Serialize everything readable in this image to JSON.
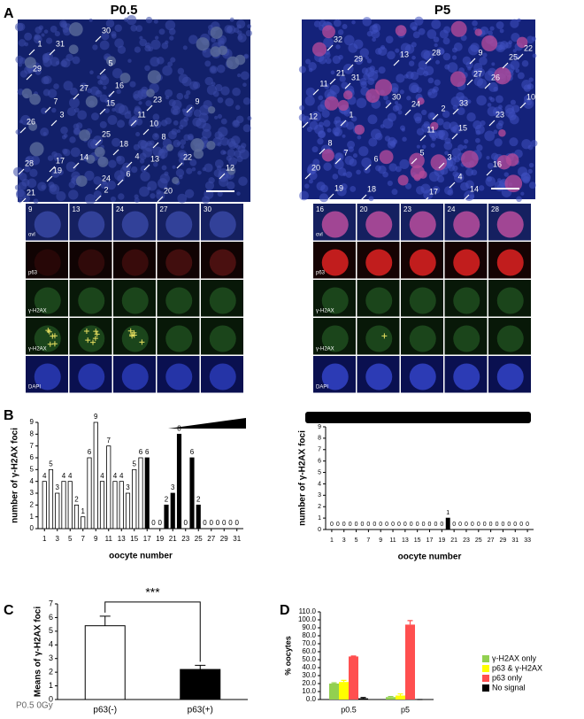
{
  "panel_a": {
    "label": "A",
    "titles": [
      "P0.5",
      "P5"
    ],
    "image_labels": [
      [
        "30",
        "1",
        "31",
        "29",
        "5",
        "27",
        "16",
        "7",
        "15",
        "23",
        "3",
        "11",
        "10",
        "26",
        "9",
        "8",
        "25",
        "18",
        "4",
        "14",
        "17",
        "28",
        "13",
        "22",
        "12",
        "19",
        "24",
        "6",
        "2",
        "20",
        "21"
      ],
      [
        "32",
        "13",
        "28",
        "9",
        "22",
        "25",
        "29",
        "21",
        "31",
        "11",
        "27",
        "26",
        "10",
        "30",
        "24",
        "2",
        "33",
        "12",
        "1",
        "11",
        "15",
        "23",
        "8",
        "7",
        "6",
        "5",
        "3",
        "16",
        "20",
        "4",
        "14",
        "18",
        "19",
        "17"
      ]
    ],
    "inset_columns": [
      [
        "9",
        "13",
        "24",
        "27",
        "30"
      ],
      [
        "16",
        "20",
        "23",
        "24",
        "28"
      ]
    ],
    "inset_rows": [
      "ovl",
      "p63",
      "γ-H2AX",
      "γ-H2AX",
      "DAPI"
    ]
  },
  "panel_labels": [
    "B",
    "C",
    "D"
  ],
  "chart_data": [
    {
      "type": "bar",
      "x": [
        1,
        2,
        3,
        4,
        5,
        6,
        7,
        8,
        9,
        10,
        11,
        12,
        13,
        14,
        15,
        16,
        17,
        18,
        19,
        20,
        21,
        22,
        23,
        24,
        25,
        26,
        27,
        28,
        29,
        30,
        31
      ],
      "values": [
        4,
        5,
        3,
        4,
        4,
        2,
        1,
        6,
        9,
        4,
        7,
        4,
        4,
        3,
        5,
        6,
        6,
        0,
        0,
        2,
        3,
        8,
        0,
        6,
        2,
        0,
        0,
        0,
        0,
        0,
        0
      ],
      "colors": [
        "#ffffff",
        "#ffffff",
        "#ffffff",
        "#ffffff",
        "#ffffff",
        "#ffffff",
        "#ffffff",
        "#ffffff",
        "#ffffff",
        "#ffffff",
        "#ffffff",
        "#ffffff",
        "#ffffff",
        "#ffffff",
        "#ffffff",
        "#ffffff",
        "#000000",
        "#000000",
        "#000000",
        "#000000",
        "#000000",
        "#000000",
        "#000000",
        "#000000",
        "#000000",
        "#000000",
        "#000000",
        "#000000",
        "#000000",
        "#000000",
        "#000000"
      ],
      "xlim": [
        0,
        32
      ],
      "xticks": [
        1,
        3,
        5,
        7,
        9,
        11,
        13,
        15,
        17,
        19,
        21,
        23,
        25,
        27,
        29,
        31
      ],
      "ylim": [
        0,
        9
      ],
      "yticks": [
        0,
        1,
        2,
        3,
        4,
        5,
        6,
        7,
        8,
        9
      ],
      "ylabel": "number of γ-H2AX foci",
      "xlabel": "oocyte number"
    },
    {
      "type": "bar",
      "x": [
        1,
        2,
        3,
        4,
        5,
        6,
        7,
        8,
        9,
        10,
        11,
        12,
        13,
        14,
        15,
        16,
        17,
        18,
        19,
        20,
        21,
        22,
        23,
        24,
        25,
        26,
        27,
        28,
        29,
        30,
        31,
        32,
        33
      ],
      "values": [
        0,
        0,
        0,
        0,
        0,
        0,
        0,
        0,
        0,
        0,
        0,
        0,
        0,
        0,
        0,
        0,
        0,
        0,
        0,
        1,
        0,
        0,
        0,
        0,
        0,
        0,
        0,
        0,
        0,
        0,
        0,
        0,
        0
      ],
      "color": "#000000",
      "xlim": [
        0,
        34
      ],
      "xticks": [
        1,
        3,
        5,
        7,
        9,
        11,
        13,
        15,
        17,
        19,
        21,
        23,
        25,
        27,
        29,
        31,
        33
      ],
      "ylim": [
        0,
        9
      ],
      "yticks": [
        0,
        1,
        2,
        3,
        4,
        5,
        6,
        7,
        8,
        9
      ],
      "ylabel": "number of γ-H2AX foci",
      "xlabel": "oocyte number"
    },
    {
      "type": "bar",
      "categories": [
        "p63(-)",
        "p63(+)"
      ],
      "values": [
        5.4,
        2.2
      ],
      "errors": [
        0.7,
        0.3
      ],
      "colors": [
        "#ffffff",
        "#000000"
      ],
      "ylim": [
        0,
        7
      ],
      "yticks": [
        0,
        1,
        2,
        3,
        4,
        5,
        6,
        7
      ],
      "ylabel": "Means of γ-H2AX foci",
      "annotation": "***",
      "note": "P0.5 0Gy"
    },
    {
      "type": "grouped_bar",
      "categories": [
        "p0.5",
        "p5"
      ],
      "series": [
        {
          "name": "γ-H2AX only",
          "color": "#92d050",
          "values": [
            20,
            3
          ],
          "errors": [
            1,
            0.8
          ]
        },
        {
          "name": "p63 & γ-H2AX",
          "color": "#ffff00",
          "values": [
            22,
            5
          ],
          "errors": [
            2,
            2
          ]
        },
        {
          "name": "p63 only",
          "color": "#ff4f4f",
          "values": [
            54,
            94
          ],
          "errors": [
            0.6,
            5
          ]
        },
        {
          "name": "No signal",
          "color": "#000000",
          "values": [
            1.5,
            0
          ],
          "errors": [
            1,
            0
          ]
        }
      ],
      "ylim": [
        0,
        110
      ],
      "yticks": [
        {
          "value": 0,
          "label": "0.0"
        },
        {
          "value": 10,
          "label": "10.0"
        },
        {
          "value": 20,
          "label": "20.0"
        },
        {
          "value": 30,
          "label": "30.0"
        },
        {
          "value": 40,
          "label": "40.0"
        },
        {
          "value": 50,
          "label": "50.0"
        },
        {
          "value": 60,
          "label": "60.0"
        },
        {
          "value": 70,
          "label": "70.0"
        },
        {
          "value": 80,
          "label": "80.0"
        },
        {
          "value": 90,
          "label": "90.0"
        },
        {
          "value": 100,
          "label": "100.0"
        },
        {
          "value": 110,
          "label": "110.0"
        }
      ],
      "ylabel": "% oocytes"
    }
  ]
}
